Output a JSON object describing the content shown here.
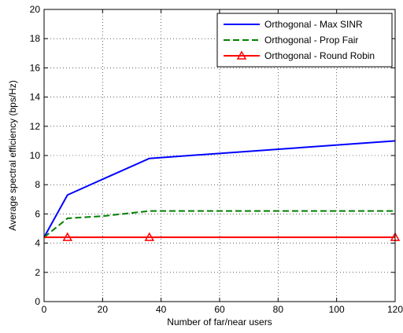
{
  "chart_data": {
    "type": "line",
    "xlabel": "Number of far/near  users",
    "ylabel": "Average spectral efficiency (bps/Hz)",
    "xlim": [
      0,
      120
    ],
    "ylim": [
      0,
      20
    ],
    "xticks": [
      0,
      20,
      40,
      60,
      80,
      100,
      120
    ],
    "yticks": [
      0,
      2,
      4,
      6,
      8,
      10,
      12,
      14,
      16,
      18,
      20
    ],
    "grid": true,
    "legend_position": "top-right",
    "series": [
      {
        "name": "Orthogonal - Max SINR",
        "color": "#0000ff",
        "style": "solid",
        "marker": "none",
        "points": [
          [
            0,
            4.4
          ],
          [
            8,
            7.3
          ],
          [
            36,
            9.8
          ],
          [
            120,
            11.0
          ]
        ]
      },
      {
        "name": "Orthogonal - Prop Fair",
        "color": "#008000",
        "style": "dashed",
        "marker": "none",
        "points": [
          [
            0,
            4.4
          ],
          [
            8,
            5.7
          ],
          [
            20,
            5.85
          ],
          [
            36,
            6.2
          ],
          [
            120,
            6.2
          ]
        ]
      },
      {
        "name": "Orthogonal - Round Robin",
        "color": "#ff0000",
        "style": "solid",
        "marker": "triangle",
        "points": [
          [
            0,
            4.4
          ],
          [
            8,
            4.4
          ],
          [
            36,
            4.4
          ],
          [
            120,
            4.4
          ]
        ],
        "marker_x": [
          8,
          36,
          120
        ]
      }
    ]
  }
}
